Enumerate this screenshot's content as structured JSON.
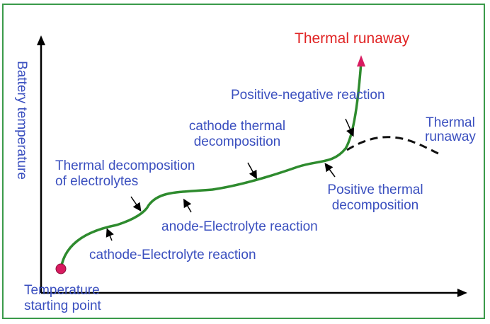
{
  "y_axis_label": "Battery temperature",
  "labels": {
    "thermal_runaway_top": "Thermal runaway",
    "positive_negative": "Positive-negative reaction",
    "thermal_runaway_side_1": "Thermal",
    "thermal_runaway_side_2": "runaway",
    "cathode_thermal_1": "cathode thermal",
    "cathode_thermal_2": "decomposition",
    "electrolyte_decomp_1": "Thermal decomposition",
    "electrolyte_decomp_2": "of electrolytes",
    "positive_thermal_1": "Positive thermal",
    "positive_thermal_2": "decomposition",
    "anode_electrolyte": "anode-Electrolyte reaction",
    "cathode_electrolyte": "cathode-Electrolyte reaction",
    "start_1": "Temperature",
    "start_2": "starting point"
  },
  "colors": {
    "curve": "#2e8b2e",
    "axis": "#000000",
    "text": "#3a4fbf",
    "highlight": "#e02424",
    "start_dot": "#d81b60",
    "frame": "#3a9a4a"
  }
}
